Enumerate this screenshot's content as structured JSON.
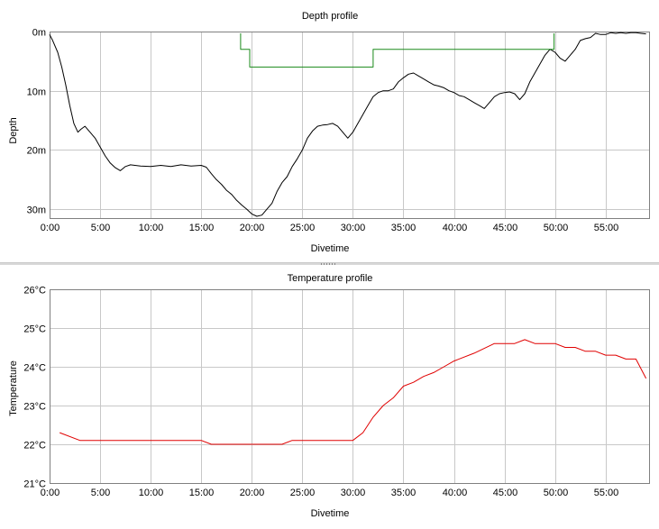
{
  "colors": {
    "grid": "#c8c8c8",
    "axis": "#808080",
    "depth": "#000000",
    "deco": "#1a8a1a",
    "temp": "#e00000"
  },
  "charts": [
    {
      "title": "Depth profile",
      "xlabel": "Divetime",
      "ylabel": "Depth",
      "y_ticks": [
        "0m",
        "10m",
        "20m",
        "30m"
      ],
      "x_ticks": [
        "0:00",
        "5:00",
        "10:00",
        "15:00",
        "20:00",
        "25:00",
        "30:00",
        "35:00",
        "40:00",
        "45:00",
        "50:00",
        "55:00"
      ]
    },
    {
      "title": "Temperature profile",
      "xlabel": "Divetime",
      "ylabel": "Temperature",
      "y_ticks": [
        "26°C",
        "25°C",
        "24°C",
        "23°C",
        "22°C",
        "21°C"
      ],
      "x_ticks": [
        "0:00",
        "5:00",
        "10:00",
        "15:00",
        "20:00",
        "25:00",
        "30:00",
        "35:00",
        "40:00",
        "45:00",
        "50:00",
        "55:00"
      ]
    }
  ],
  "chart_data": [
    {
      "type": "line",
      "title": "Depth profile",
      "xlabel": "Divetime",
      "ylabel": "Depth",
      "x_unit": "minutes",
      "xlim": [
        0,
        59.3
      ],
      "ylim": [
        0,
        31.5
      ],
      "y_inverted": true,
      "grid": true,
      "series": [
        {
          "x": [
            0,
            0.3,
            0.8,
            1.2,
            1.6,
            2.0,
            2.4,
            2.8,
            3.1,
            3.5,
            4.0,
            4.5,
            5.0,
            5.5,
            6.0,
            6.5,
            7.0,
            7.5,
            8.0,
            9.0,
            10.0,
            11.0,
            12.0,
            13.0,
            14.0,
            15.0,
            15.5,
            16.0,
            16.5,
            17.0,
            17.5,
            18.0,
            18.5,
            19.0,
            19.5,
            20.0,
            20.5,
            21.0,
            21.5,
            22.0,
            22.5,
            23.0,
            23.5,
            24.0,
            24.5,
            25.0,
            25.5,
            26.0,
            26.5,
            27.0,
            27.5,
            28.0,
            28.5,
            29.0,
            29.5,
            30.0,
            30.5,
            31.0,
            31.5,
            32.0,
            32.5,
            33.0,
            33.5,
            34.0,
            34.5,
            35.0,
            35.5,
            36.0,
            36.5,
            37.0,
            37.5,
            38.0,
            38.5,
            39.0,
            39.5,
            40.0,
            40.5,
            41.0,
            41.5,
            42.0,
            42.5,
            43.0,
            43.5,
            44.0,
            44.5,
            45.0,
            45.5,
            46.0,
            46.5,
            47.0,
            47.5,
            48.0,
            48.5,
            49.0,
            49.5,
            50.0,
            50.5,
            51.0,
            51.5,
            52.0,
            52.5,
            53.0,
            53.5,
            54.0,
            54.5,
            55.0,
            55.5,
            56.0,
            56.5,
            57.0,
            57.5,
            58.0,
            58.5,
            59.0
          ],
          "y": [
            0.5,
            1.5,
            3.5,
            6.0,
            9.0,
            12.5,
            15.5,
            17.0,
            16.5,
            16.0,
            17.0,
            18.0,
            19.5,
            21.0,
            22.2,
            23.0,
            23.5,
            22.8,
            22.5,
            22.7,
            22.8,
            22.6,
            22.8,
            22.5,
            22.7,
            22.6,
            22.9,
            24.0,
            25.0,
            25.8,
            26.8,
            27.5,
            28.5,
            29.3,
            30.0,
            30.8,
            31.2,
            31.0,
            30.0,
            29.0,
            27.0,
            25.5,
            24.5,
            22.8,
            21.5,
            20.0,
            18.0,
            16.8,
            16.0,
            15.8,
            15.7,
            15.5,
            16.0,
            17.0,
            18.0,
            17.0,
            15.5,
            14.0,
            12.5,
            11.0,
            10.3,
            10.0,
            10.0,
            9.7,
            8.5,
            7.8,
            7.2,
            7.0,
            7.5,
            8.0,
            8.5,
            9.0,
            9.2,
            9.5,
            10.0,
            10.3,
            10.8,
            11.0,
            11.5,
            12.0,
            12.5,
            13.0,
            12.0,
            11.0,
            10.5,
            10.3,
            10.2,
            10.5,
            11.5,
            10.5,
            8.5,
            7.0,
            5.5,
            4.0,
            3.0,
            3.5,
            4.5,
            5.0,
            4.0,
            3.0,
            1.5,
            1.2,
            1.0,
            0.3,
            0.5,
            0.5,
            0.2,
            0.3,
            0.2,
            0.3,
            0.2,
            0.2,
            0.3,
            0.4
          ]
        },
        {
          "x": [
            18.9,
            18.9,
            19.8,
            19.8,
            32.0,
            32.0,
            49.9,
            49.9
          ],
          "y": [
            0.3,
            3.0,
            3.0,
            6.0,
            6.0,
            3.0,
            3.0,
            0.3
          ]
        }
      ]
    },
    {
      "type": "line",
      "title": "Temperature profile",
      "xlabel": "Divetime",
      "ylabel": "Temperature",
      "x_unit": "minutes",
      "xlim": [
        0,
        59.3
      ],
      "ylim": [
        21,
        26
      ],
      "grid": true,
      "series": [
        {
          "x": [
            1,
            3,
            5,
            10,
            15,
            16,
            20,
            23,
            24,
            30,
            31,
            32,
            33,
            34,
            35,
            36,
            37,
            38,
            39,
            40,
            42,
            44,
            46,
            47,
            48,
            50,
            51,
            52,
            53,
            54,
            55,
            56,
            57,
            58,
            59
          ],
          "y": [
            22.3,
            22.1,
            22.1,
            22.1,
            22.1,
            22.0,
            22.0,
            22.0,
            22.1,
            22.1,
            22.3,
            22.7,
            23.0,
            23.2,
            23.5,
            23.6,
            23.75,
            23.85,
            24.0,
            24.15,
            24.35,
            24.6,
            24.6,
            24.7,
            24.6,
            24.6,
            24.5,
            24.5,
            24.4,
            24.4,
            24.3,
            24.3,
            24.2,
            24.2,
            23.7
          ]
        }
      ]
    }
  ]
}
